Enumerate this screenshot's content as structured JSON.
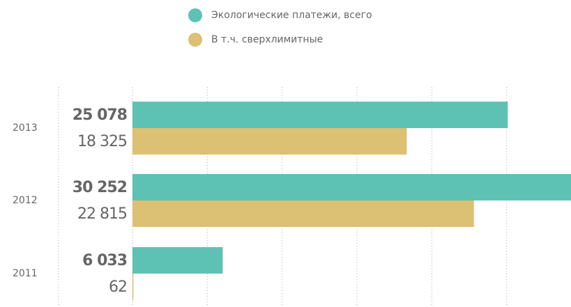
{
  "chart_data": {
    "type": "hbar",
    "categories": [
      "2013",
      "2012",
      "2011"
    ],
    "series": [
      {
        "name": "Экологические платежи, всего",
        "color": "#5dc2b4",
        "values": [
          25078,
          30252,
          6033
        ],
        "value_labels": [
          "25 078",
          "30 252",
          "6 033"
        ]
      },
      {
        "name": "В т.ч. сверхлимитные",
        "color": "#dcc073",
        "values": [
          18325,
          22815,
          62
        ],
        "value_labels": [
          "18 325",
          "22 815",
          "62"
        ]
      }
    ],
    "xlim": [
      0,
      29300
    ],
    "xticks": [
      0,
      5000,
      10000,
      15000,
      20000,
      25000
    ],
    "grid": true
  }
}
